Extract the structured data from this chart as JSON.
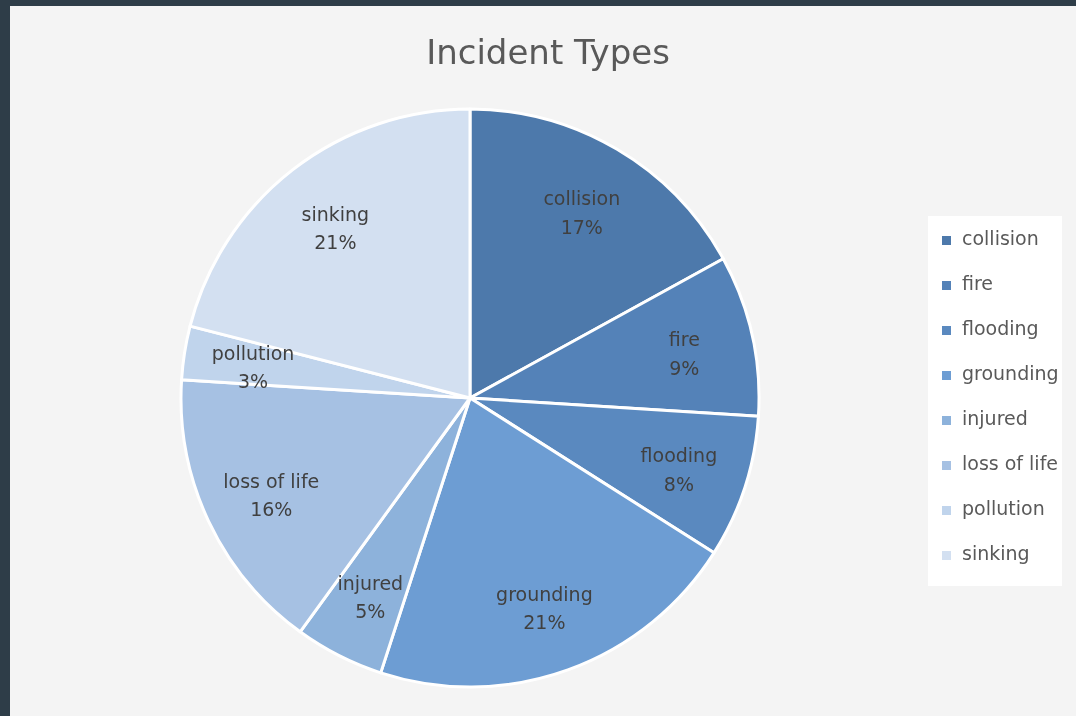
{
  "chart_data": {
    "type": "pie",
    "title": "Incident Types",
    "categories": [
      "collision",
      "fire",
      "flooding",
      "grounding",
      "injured",
      "loss of life",
      "pollution",
      "sinking"
    ],
    "values": [
      17,
      9,
      8,
      21,
      5,
      16,
      3,
      21
    ],
    "colors": [
      "#4d79ab",
      "#5482b8",
      "#5a89bf",
      "#6d9dd3",
      "#8db2db",
      "#a6c1e3",
      "#c0d4ec",
      "#d3e0f1"
    ],
    "value_labels": [
      "17%",
      "9%",
      "8%",
      "21%",
      "5%",
      "16%",
      "3%",
      "21%"
    ],
    "legend": "right"
  }
}
